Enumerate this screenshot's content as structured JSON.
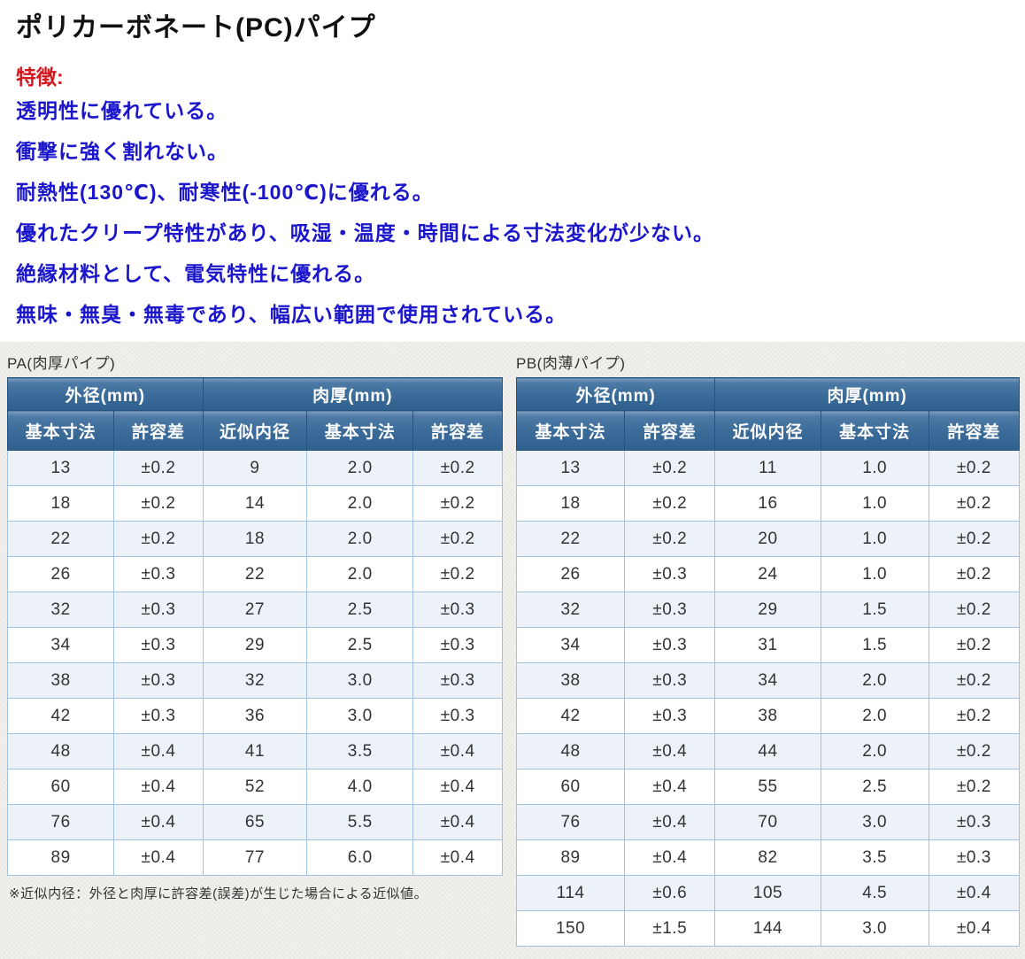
{
  "page": {
    "title": "ポリカーボネート(PC)パイプ",
    "features_heading": "特徴:",
    "features": [
      "透明性に優れている。",
      "衝撃に強く割れない。",
      "耐熱性(130℃)、耐寒性(-100℃)に優れる。",
      "優れたクリープ特性があり、吸湿・温度・時間による寸法変化が少ない。",
      "絶縁材料として、電気特性に優れる。",
      "無味・無臭・無毒であり、幅広い範囲で使用されている。"
    ]
  },
  "colors": {
    "features_heading_red": "#d2181e",
    "features_blue": "#1b16cc",
    "header_blue_top": "#4d7aa5",
    "header_blue_bottom": "#2f608e",
    "row_alt_blue": "#edf2f9",
    "cell_border_blue": "#a3c2e0"
  },
  "tables": {
    "group_headers": [
      "外径(mm)",
      "肉厚(mm)"
    ],
    "col_headers": [
      "基本寸法",
      "許容差",
      "近似内径",
      "基本寸法",
      "許容差"
    ],
    "pa": {
      "label": "PA(肉厚パイプ)",
      "rows": [
        [
          "13",
          "±0.2",
          "9",
          "2.0",
          "±0.2"
        ],
        [
          "18",
          "±0.2",
          "14",
          "2.0",
          "±0.2"
        ],
        [
          "22",
          "±0.2",
          "18",
          "2.0",
          "±0.2"
        ],
        [
          "26",
          "±0.3",
          "22",
          "2.0",
          "±0.2"
        ],
        [
          "32",
          "±0.3",
          "27",
          "2.5",
          "±0.3"
        ],
        [
          "34",
          "±0.3",
          "29",
          "2.5",
          "±0.3"
        ],
        [
          "38",
          "±0.3",
          "32",
          "3.0",
          "±0.3"
        ],
        [
          "42",
          "±0.3",
          "36",
          "3.0",
          "±0.3"
        ],
        [
          "48",
          "±0.4",
          "41",
          "3.5",
          "±0.4"
        ],
        [
          "60",
          "±0.4",
          "52",
          "4.0",
          "±0.4"
        ],
        [
          "76",
          "±0.4",
          "65",
          "5.5",
          "±0.4"
        ],
        [
          "89",
          "±0.4",
          "77",
          "6.0",
          "±0.4"
        ]
      ]
    },
    "pb": {
      "label": "PB(肉薄パイプ)",
      "rows": [
        [
          "13",
          "±0.2",
          "11",
          "1.0",
          "±0.2"
        ],
        [
          "18",
          "±0.2",
          "16",
          "1.0",
          "±0.2"
        ],
        [
          "22",
          "±0.2",
          "20",
          "1.0",
          "±0.2"
        ],
        [
          "26",
          "±0.3",
          "24",
          "1.0",
          "±0.2"
        ],
        [
          "32",
          "±0.3",
          "29",
          "1.5",
          "±0.2"
        ],
        [
          "34",
          "±0.3",
          "31",
          "1.5",
          "±0.2"
        ],
        [
          "38",
          "±0.3",
          "34",
          "2.0",
          "±0.2"
        ],
        [
          "42",
          "±0.3",
          "38",
          "2.0",
          "±0.2"
        ],
        [
          "48",
          "±0.4",
          "44",
          "2.0",
          "±0.2"
        ],
        [
          "60",
          "±0.4",
          "55",
          "2.5",
          "±0.2"
        ],
        [
          "76",
          "±0.4",
          "70",
          "3.0",
          "±0.3"
        ],
        [
          "89",
          "±0.4",
          "82",
          "3.5",
          "±0.3"
        ],
        [
          "114",
          "±0.6",
          "105",
          "4.5",
          "±0.4"
        ],
        [
          "150",
          "±1.5",
          "144",
          "3.0",
          "±0.4"
        ]
      ]
    },
    "footnote": "※近似内径：外径と肉厚に許容差(誤差)が生じた場合による近似値。"
  }
}
